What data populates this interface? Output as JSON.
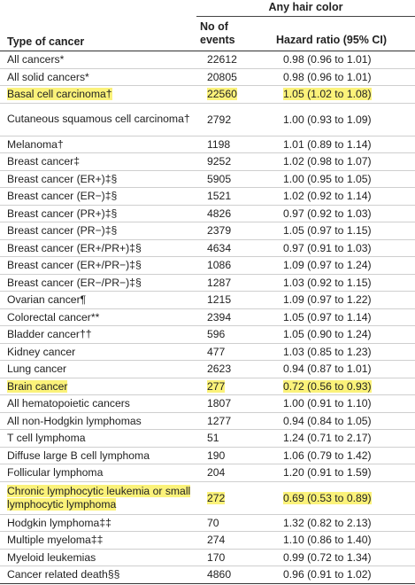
{
  "header": {
    "span_title": "Any hair color",
    "col_type": "Type of cancer",
    "col_events_1": "No of",
    "col_events_2": "events",
    "col_hr": "Hazard ratio (95% CI)"
  },
  "highlight_color": "#fbf27a",
  "rows": [
    {
      "type": "All cancers*",
      "events": "22612",
      "hr": "0.98 (0.96 to 1.01)",
      "highlight": false
    },
    {
      "type": "All solid cancers*",
      "events": "20805",
      "hr": "0.98 (0.96 to 1.01)",
      "highlight": false
    },
    {
      "type": "Basal cell carcinoma†",
      "events": "22560",
      "hr": "1.05 (1.02 to 1.08)",
      "highlight": true
    },
    {
      "type": "Cutaneous squamous cell carcinoma†",
      "events": "2792",
      "hr": "1.00 (0.93 to 1.09)",
      "highlight": false
    },
    {
      "type": "Melanoma†",
      "events": "1198",
      "hr": "1.01 (0.89 to 1.14)",
      "highlight": false
    },
    {
      "type": "Breast cancer‡",
      "events": "9252",
      "hr": "1.02 (0.98 to 1.07)",
      "highlight": false
    },
    {
      "type": "Breast cancer (ER+)‡§",
      "events": "5905",
      "hr": "1.00 (0.95 to 1.05)",
      "highlight": false
    },
    {
      "type": "Breast cancer (ER−)‡§",
      "events": "1521",
      "hr": "1.02 (0.92 to 1.14)",
      "highlight": false
    },
    {
      "type": "Breast cancer (PR+)‡§",
      "events": "4826",
      "hr": "0.97 (0.92 to 1.03)",
      "highlight": false
    },
    {
      "type": "Breast cancer (PR−)‡§",
      "events": "2379",
      "hr": "1.05 (0.97 to 1.15)",
      "highlight": false
    },
    {
      "type": "Breast cancer (ER+/PR+)‡§",
      "events": "4634",
      "hr": "0.97 (0.91 to 1.03)",
      "highlight": false
    },
    {
      "type": "Breast cancer (ER+/PR−)‡§",
      "events": "1086",
      "hr": "1.09 (0.97 to 1.24)",
      "highlight": false
    },
    {
      "type": "Breast cancer (ER−/PR−)‡§",
      "events": "1287",
      "hr": "1.03 (0.92 to 1.15)",
      "highlight": false
    },
    {
      "type": "Ovarian cancer¶",
      "events": "1215",
      "hr": "1.09 (0.97 to 1.22)",
      "highlight": false
    },
    {
      "type": "Colorectal cancer**",
      "events": "2394",
      "hr": "1.05 (0.97 to 1.14)",
      "highlight": false
    },
    {
      "type": "Bladder cancer††",
      "events": "596",
      "hr": "1.05 (0.90 to 1.24)",
      "highlight": false
    },
    {
      "type": "Kidney cancer",
      "events": "477",
      "hr": "1.03 (0.85 to 1.23)",
      "highlight": false
    },
    {
      "type": "Lung cancer",
      "events": "2623",
      "hr": "0.94 (0.87 to 1.01)",
      "highlight": false
    },
    {
      "type": "Brain cancer",
      "events": "277",
      "hr": "0.72 (0.56 to 0.93)",
      "highlight": true
    },
    {
      "type": "All hematopoietic cancers",
      "events": "1807",
      "hr": "1.00 (0.91 to 1.10)",
      "highlight": false
    },
    {
      "type": "All non-Hodgkin lymphomas",
      "events": "1277",
      "hr": "0.94 (0.84 to 1.05)",
      "highlight": false
    },
    {
      "type": "T cell lymphoma",
      "events": "51",
      "hr": "1.24 (0.71 to 2.17)",
      "highlight": false
    },
    {
      "type": "Diffuse large B cell lymphoma",
      "events": "190",
      "hr": "1.06 (0.79 to 1.42)",
      "highlight": false
    },
    {
      "type": "Follicular lymphoma",
      "events": "204",
      "hr": "1.20 (0.91 to 1.59)",
      "highlight": false
    },
    {
      "type": "Chronic lymphocytic leukemia or small lymphocytic lymphoma",
      "events": "272",
      "hr": "0.69 (0.53 to 0.89)",
      "highlight": true
    },
    {
      "type": "Hodgkin lymphoma‡‡",
      "events": "70",
      "hr": "1.32 (0.82 to 2.13)",
      "highlight": false
    },
    {
      "type": "Multiple myeloma‡‡",
      "events": "274",
      "hr": "1.10 (0.86 to 1.40)",
      "highlight": false
    },
    {
      "type": "Myeloid leukemias",
      "events": "170",
      "hr": "0.99 (0.72 to 1.34)",
      "highlight": false
    },
    {
      "type": "Cancer related death§§",
      "events": "4860",
      "hr": "0.96 (0.91 to 1.02)",
      "highlight": false
    }
  ]
}
